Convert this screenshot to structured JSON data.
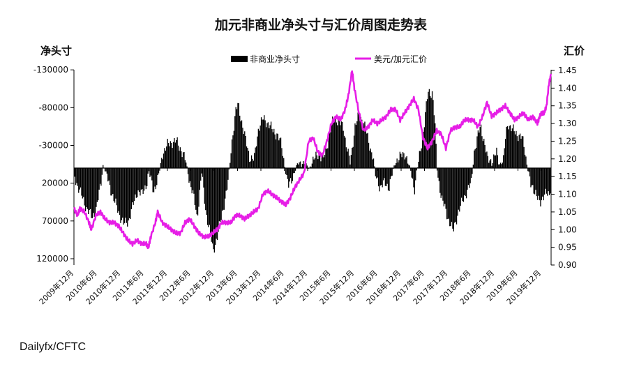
{
  "chart_data": {
    "type": "bar+line",
    "title": "加元非商业净头寸与汇价周图走势表",
    "left_axis": {
      "label": "净头寸",
      "inverted": true,
      "range": [
        -140000,
        125000
      ],
      "ticks": [
        "-130000",
        "-80000",
        "-30000",
        "20000",
        "70000",
        "120000"
      ],
      "tick_values": [
        -130000,
        -80000,
        -30000,
        20000,
        70000,
        120000
      ]
    },
    "right_axis": {
      "label": "汇价",
      "range": [
        0.9,
        1.45
      ],
      "ticks": [
        "1.45",
        "1.40",
        "1.35",
        "1.30",
        "1.25",
        "1.20",
        "1.15",
        "1.10",
        "1.05",
        "1.00",
        "0.95",
        "0.90"
      ],
      "tick_values": [
        1.45,
        1.4,
        1.35,
        1.3,
        1.25,
        1.2,
        1.15,
        1.1,
        1.05,
        1.0,
        0.95,
        0.9
      ]
    },
    "x_ticks": [
      "2009年12月",
      "2010年6月",
      "2010年12月",
      "2011年6月",
      "2011年12月",
      "2012年6月",
      "2012年12月",
      "2013年6月",
      "2013年12月",
      "2014年6月",
      "2014年12月",
      "2015年6月",
      "2015年12月",
      "2016年6月",
      "2016年12月",
      "2017年6月",
      "2017年12月",
      "2018年6月",
      "2018年12月",
      "2019年6月",
      "2019年12月"
    ],
    "x_range_years": [
      2009.92,
      2020.35
    ],
    "legend": {
      "position": "top",
      "bars_label": "非商业净头寸",
      "line_label": "美元/加元汇价"
    },
    "colors": {
      "bars": "#000000",
      "line": "#e61ee6"
    },
    "series": [
      {
        "name": "非商业净头寸",
        "kind": "bar",
        "axis": "left",
        "points": [
          [
            2009.92,
            10000
          ],
          [
            2010.0,
            25000
          ],
          [
            2010.1,
            40000
          ],
          [
            2010.2,
            55000
          ],
          [
            2010.3,
            65000
          ],
          [
            2010.4,
            55000
          ],
          [
            2010.5,
            20000
          ],
          [
            2010.55,
            -5000
          ],
          [
            2010.6,
            5000
          ],
          [
            2010.7,
            25000
          ],
          [
            2010.8,
            45000
          ],
          [
            2010.9,
            60000
          ],
          [
            2011.0,
            75000
          ],
          [
            2011.1,
            70000
          ],
          [
            2011.2,
            50000
          ],
          [
            2011.3,
            30000
          ],
          [
            2011.4,
            35000
          ],
          [
            2011.5,
            20000
          ],
          [
            2011.55,
            5000
          ],
          [
            2011.65,
            30000
          ],
          [
            2011.75,
            15000
          ],
          [
            2011.85,
            -20000
          ],
          [
            2011.95,
            -30000
          ],
          [
            2012.05,
            -35000
          ],
          [
            2012.15,
            -35000
          ],
          [
            2012.25,
            -25000
          ],
          [
            2012.35,
            -10000
          ],
          [
            2012.45,
            20000
          ],
          [
            2012.55,
            45000
          ],
          [
            2012.6,
            65000
          ],
          [
            2012.65,
            40000
          ],
          [
            2012.7,
            5000
          ],
          [
            2012.8,
            60000
          ],
          [
            2012.9,
            90000
          ],
          [
            2012.95,
            110000
          ],
          [
            2013.05,
            90000
          ],
          [
            2013.15,
            60000
          ],
          [
            2013.25,
            30000
          ],
          [
            2013.3,
            10000
          ],
          [
            2013.35,
            -30000
          ],
          [
            2013.45,
            -75000
          ],
          [
            2013.5,
            -85000
          ],
          [
            2013.55,
            -70000
          ],
          [
            2013.65,
            -40000
          ],
          [
            2013.75,
            -15000
          ],
          [
            2013.85,
            -10000
          ],
          [
            2013.9,
            -35000
          ],
          [
            2013.95,
            -55000
          ],
          [
            2014.05,
            -65000
          ],
          [
            2014.15,
            -60000
          ],
          [
            2014.25,
            -50000
          ],
          [
            2014.35,
            -45000
          ],
          [
            2014.45,
            -30000
          ],
          [
            2014.5,
            -10000
          ],
          [
            2014.55,
            10000
          ],
          [
            2014.6,
            25000
          ],
          [
            2014.7,
            10000
          ],
          [
            2014.8,
            -5000
          ],
          [
            2014.9,
            -10000
          ],
          [
            2014.95,
            -5000
          ],
          [
            2015.05,
            0
          ],
          [
            2015.15,
            -10000
          ],
          [
            2015.25,
            -20000
          ],
          [
            2015.35,
            -10000
          ],
          [
            2015.4,
            -20000
          ],
          [
            2015.5,
            -45000
          ],
          [
            2015.6,
            -70000
          ],
          [
            2015.7,
            -60000
          ],
          [
            2015.8,
            -55000
          ],
          [
            2015.85,
            -35000
          ],
          [
            2015.95,
            -5000
          ],
          [
            2016.05,
            -55000
          ],
          [
            2016.15,
            -70000
          ],
          [
            2016.25,
            -60000
          ],
          [
            2016.35,
            -35000
          ],
          [
            2016.45,
            -15000
          ],
          [
            2016.5,
            10000
          ],
          [
            2016.6,
            25000
          ],
          [
            2016.7,
            20000
          ],
          [
            2016.8,
            25000
          ],
          [
            2016.9,
            0
          ],
          [
            2016.95,
            -10000
          ],
          [
            2017.05,
            -15000
          ],
          [
            2017.15,
            -20000
          ],
          [
            2017.2,
            -10000
          ],
          [
            2017.3,
            10000
          ],
          [
            2017.35,
            30000
          ],
          [
            2017.4,
            5000
          ],
          [
            2017.45,
            -10000
          ],
          [
            2017.55,
            -50000
          ],
          [
            2017.65,
            -100000
          ],
          [
            2017.75,
            -100000
          ],
          [
            2017.8,
            -60000
          ],
          [
            2017.85,
            5000
          ],
          [
            2017.95,
            40000
          ],
          [
            2018.05,
            60000
          ],
          [
            2018.15,
            75000
          ],
          [
            2018.2,
            85000
          ],
          [
            2018.3,
            60000
          ],
          [
            2018.4,
            45000
          ],
          [
            2018.5,
            30000
          ],
          [
            2018.6,
            20000
          ],
          [
            2018.65,
            -20000
          ],
          [
            2018.75,
            -45000
          ],
          [
            2018.8,
            -55000
          ],
          [
            2018.9,
            -30000
          ],
          [
            2018.95,
            -10000
          ],
          [
            2019.05,
            -10000
          ],
          [
            2019.15,
            -20000
          ],
          [
            2019.2,
            -5000
          ],
          [
            2019.3,
            -10000
          ],
          [
            2019.35,
            -45000
          ],
          [
            2019.4,
            -60000
          ],
          [
            2019.5,
            -50000
          ],
          [
            2019.6,
            -45000
          ],
          [
            2019.7,
            -40000
          ],
          [
            2019.75,
            -30000
          ],
          [
            2019.8,
            -10000
          ],
          [
            2019.9,
            25000
          ],
          [
            2020.0,
            30000
          ],
          [
            2020.1,
            50000
          ],
          [
            2020.15,
            40000
          ],
          [
            2020.2,
            30000
          ],
          [
            2020.3,
            40000
          ],
          [
            2020.35,
            15000
          ]
        ]
      },
      {
        "name": "美元/加元汇价",
        "kind": "line",
        "axis": "right",
        "points": [
          [
            2009.92,
            1.06
          ],
          [
            2010.0,
            1.04
          ],
          [
            2010.05,
            1.06
          ],
          [
            2010.15,
            1.05
          ],
          [
            2010.25,
            1.02
          ],
          [
            2010.3,
            1.0
          ],
          [
            2010.4,
            1.04
          ],
          [
            2010.5,
            1.05
          ],
          [
            2010.6,
            1.03
          ],
          [
            2010.7,
            1.02
          ],
          [
            2010.8,
            1.02
          ],
          [
            2010.9,
            1.01
          ],
          [
            2011.0,
            0.99
          ],
          [
            2011.1,
            0.97
          ],
          [
            2011.2,
            0.96
          ],
          [
            2011.3,
            0.97
          ],
          [
            2011.4,
            0.96
          ],
          [
            2011.5,
            0.96
          ],
          [
            2011.55,
            0.95
          ],
          [
            2011.6,
            0.98
          ],
          [
            2011.7,
            1.02
          ],
          [
            2011.75,
            1.05
          ],
          [
            2011.85,
            1.02
          ],
          [
            2011.95,
            1.01
          ],
          [
            2012.05,
            1.0
          ],
          [
            2012.15,
            0.99
          ],
          [
            2012.25,
            0.99
          ],
          [
            2012.35,
            1.02
          ],
          [
            2012.45,
            1.03
          ],
          [
            2012.55,
            1.01
          ],
          [
            2012.65,
            0.99
          ],
          [
            2012.75,
            0.98
          ],
          [
            2012.85,
            0.98
          ],
          [
            2012.95,
            0.99
          ],
          [
            2013.05,
            1.0
          ],
          [
            2013.15,
            1.02
          ],
          [
            2013.25,
            1.02
          ],
          [
            2013.35,
            1.02
          ],
          [
            2013.45,
            1.04
          ],
          [
            2013.55,
            1.04
          ],
          [
            2013.65,
            1.03
          ],
          [
            2013.75,
            1.04
          ],
          [
            2013.85,
            1.05
          ],
          [
            2013.95,
            1.06
          ],
          [
            2014.05,
            1.1
          ],
          [
            2014.15,
            1.11
          ],
          [
            2014.25,
            1.1
          ],
          [
            2014.35,
            1.09
          ],
          [
            2014.45,
            1.08
          ],
          [
            2014.55,
            1.07
          ],
          [
            2014.65,
            1.09
          ],
          [
            2014.75,
            1.12
          ],
          [
            2014.85,
            1.14
          ],
          [
            2014.95,
            1.16
          ],
          [
            2015.05,
            1.25
          ],
          [
            2015.15,
            1.26
          ],
          [
            2015.25,
            1.22
          ],
          [
            2015.35,
            1.21
          ],
          [
            2015.45,
            1.25
          ],
          [
            2015.55,
            1.3
          ],
          [
            2015.65,
            1.32
          ],
          [
            2015.75,
            1.31
          ],
          [
            2015.85,
            1.34
          ],
          [
            2015.92,
            1.38
          ],
          [
            2016.0,
            1.45
          ],
          [
            2016.05,
            1.4
          ],
          [
            2016.15,
            1.33
          ],
          [
            2016.25,
            1.28
          ],
          [
            2016.35,
            1.29
          ],
          [
            2016.45,
            1.31
          ],
          [
            2016.55,
            1.3
          ],
          [
            2016.65,
            1.31
          ],
          [
            2016.75,
            1.32
          ],
          [
            2016.85,
            1.34
          ],
          [
            2016.95,
            1.34
          ],
          [
            2017.05,
            1.31
          ],
          [
            2017.15,
            1.33
          ],
          [
            2017.25,
            1.35
          ],
          [
            2017.35,
            1.37
          ],
          [
            2017.45,
            1.34
          ],
          [
            2017.55,
            1.26
          ],
          [
            2017.65,
            1.23
          ],
          [
            2017.75,
            1.25
          ],
          [
            2017.85,
            1.28
          ],
          [
            2017.95,
            1.27
          ],
          [
            2018.05,
            1.23
          ],
          [
            2018.15,
            1.28
          ],
          [
            2018.25,
            1.29
          ],
          [
            2018.35,
            1.29
          ],
          [
            2018.45,
            1.31
          ],
          [
            2018.55,
            1.31
          ],
          [
            2018.65,
            1.31
          ],
          [
            2018.75,
            1.29
          ],
          [
            2018.85,
            1.32
          ],
          [
            2018.95,
            1.36
          ],
          [
            2019.05,
            1.32
          ],
          [
            2019.15,
            1.33
          ],
          [
            2019.25,
            1.34
          ],
          [
            2019.35,
            1.35
          ],
          [
            2019.45,
            1.33
          ],
          [
            2019.55,
            1.31
          ],
          [
            2019.65,
            1.32
          ],
          [
            2019.75,
            1.33
          ],
          [
            2019.85,
            1.31
          ],
          [
            2019.95,
            1.32
          ],
          [
            2020.05,
            1.3
          ],
          [
            2020.1,
            1.32
          ],
          [
            2020.15,
            1.33
          ],
          [
            2020.2,
            1.33
          ],
          [
            2020.25,
            1.35
          ],
          [
            2020.3,
            1.41
          ],
          [
            2020.35,
            1.44
          ]
        ]
      }
    ]
  },
  "source": "Dailyfx/CFTC"
}
